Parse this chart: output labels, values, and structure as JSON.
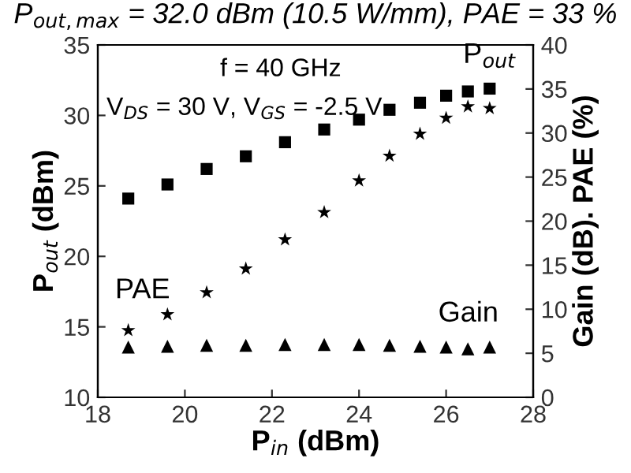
{
  "chart_data": {
    "type": "scatter",
    "title": "P$_{out,max}$ = 32.0 dBm (10.5 W/mm), PAE = 33 %",
    "xlabel": "P$_{in}$ (dBm)",
    "ylabel": "P$_{out}$ (dBm)",
    "y2label": "Gain (dB). PAE (%)",
    "annotations": [
      "f = 40 GHz",
      "V$_{DS}$ = 30 V, V$_{GS}$ = -2.5 V"
    ],
    "x": [
      18.7,
      19.6,
      20.5,
      21.4,
      22.3,
      23.2,
      24.0,
      24.7,
      25.4,
      26.0,
      26.5,
      27.0
    ],
    "series": [
      {
        "name": "P$_{out}$",
        "color": "#000000",
        "marker": "square",
        "values": [
          24.1,
          25.1,
          26.2,
          27.1,
          28.1,
          29.0,
          29.7,
          30.4,
          30.9,
          31.4,
          31.7,
          31.9
        ]
      },
      {
        "name": "PAE",
        "color": "#000000",
        "marker": "star",
        "axis": "y2",
        "values": [
          7.6,
          9.4,
          11.9,
          14.6,
          17.9,
          21.0,
          24.6,
          27.4,
          29.9,
          31.7,
          33.0,
          32.8
        ]
      },
      {
        "name": "Gain",
        "color": "#000000",
        "marker": "triangle",
        "axis": "y2",
        "values": [
          5.7,
          5.8,
          5.9,
          5.9,
          6.0,
          6.0,
          6.0,
          5.9,
          5.8,
          5.7,
          5.5,
          5.7
        ]
      }
    ],
    "xlim": [
      18,
      28
    ],
    "xticks": [
      18,
      20,
      22,
      24,
      26,
      28
    ],
    "ylim": [
      10,
      35
    ],
    "yticks": [
      10,
      15,
      20,
      25,
      30,
      35
    ],
    "y2lim": [
      0,
      40
    ],
    "y2ticks": [
      0,
      5,
      10,
      15,
      20,
      25,
      30,
      35,
      40
    ],
    "grid": false,
    "legend": false
  }
}
